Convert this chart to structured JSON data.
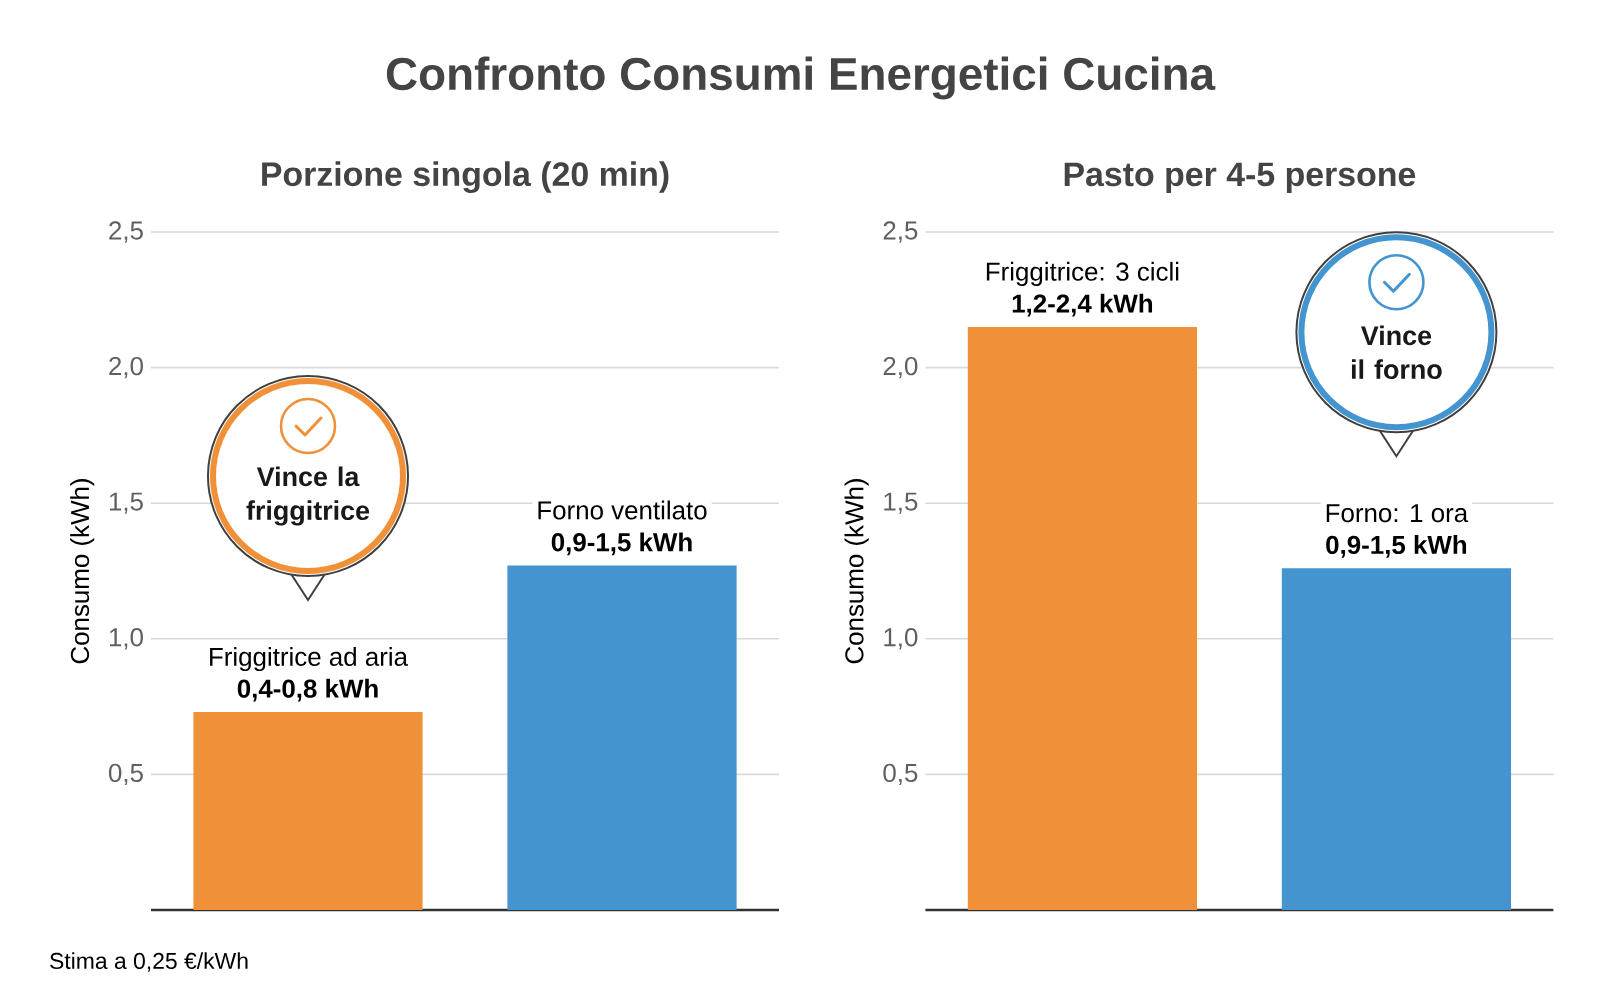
{
  "chart_data": [
    {
      "type": "bar",
      "title": "Confronto Consumi Energetici Cucina",
      "subtitle": "Porzione singola (20 min)",
      "ylabel": "Consumo (kWh)",
      "categories": [
        "Friggitrice ad aria",
        "Forno ventilato"
      ],
      "values": [
        0.73,
        1.27
      ],
      "colors": [
        "#f0913a",
        "#4394cf"
      ],
      "value_labels": [
        "0,4-0,8 kWh",
        "0,9-1,5 kWh"
      ],
      "ylim": [
        0,
        2.5
      ],
      "yticks": [
        {
          "value": 0.5,
          "label": "0,5"
        },
        {
          "value": 1,
          "label": "1,0"
        },
        {
          "value": 1.5,
          "label": "1,5"
        },
        {
          "value": 2,
          "label": "2,0"
        },
        {
          "value": 2.5,
          "label": "2,5"
        }
      ],
      "grid": "y",
      "annotations": [
        "Vince la friggitrice",
        "Stima a 0,25 €/kWh"
      ]
    },
    {
      "type": "bar",
      "subtitle": "Pasto per 4-5 persone",
      "ylabel": "Consumo (kWh)",
      "categories": [
        "Friggitrice: 3 cicli",
        "Forno: 1 ora"
      ],
      "values": [
        2.15,
        1.26
      ],
      "colors": [
        "#f0913a",
        "#4394cf"
      ],
      "value_labels": [
        "1,2-2,4 kWh",
        "0,9-1,5 kWh"
      ],
      "ylim": [
        0,
        2.5
      ],
      "yticks": [
        {
          "value": 0.5,
          "label": "0,5"
        },
        {
          "value": 1,
          "label": "1,0"
        },
        {
          "value": 1.5,
          "label": "1,5"
        },
        {
          "value": 2,
          "label": "2,0"
        },
        {
          "value": 2.5,
          "label": "2,5"
        }
      ],
      "grid": "y",
      "annotations": [
        "Vince il forno"
      ]
    }
  ]
}
